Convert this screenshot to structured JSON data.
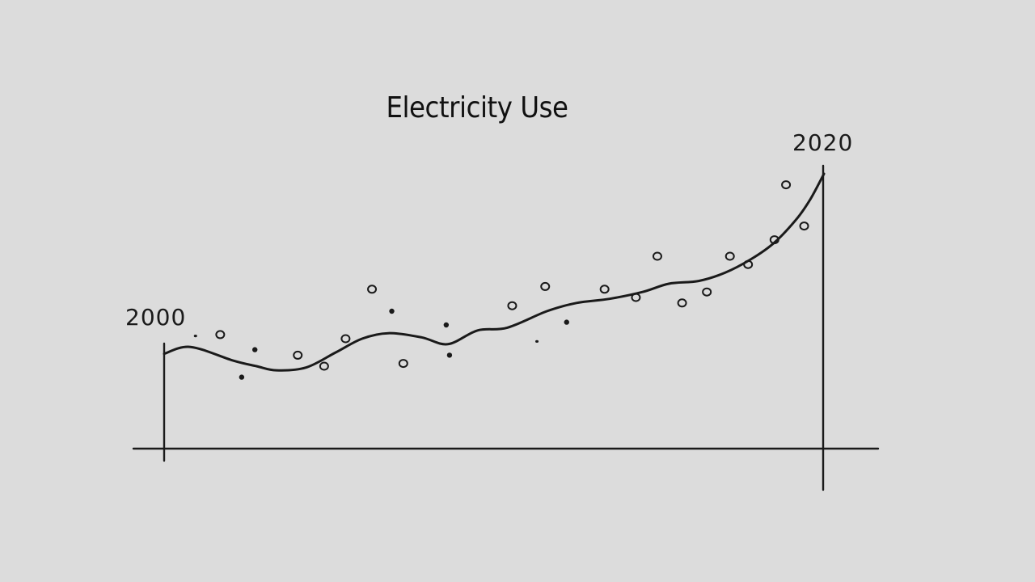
{
  "chart_data": {
    "type": "scatter",
    "title": "Electricity Use",
    "xlabel": "",
    "ylabel": "",
    "x_tick_labels": [
      "2000",
      "2020"
    ],
    "xlim": [
      2000,
      2020
    ],
    "ylim": [
      0,
      100
    ],
    "grid": false,
    "legend": "none",
    "series": [
      {
        "style": "points",
        "points": [
          {
            "x": 0.95,
            "y": 41,
            "mark": "tick"
          },
          {
            "x": 1.7,
            "y": 41.5,
            "mark": "open"
          },
          {
            "x": 2.35,
            "y": 26,
            "mark": "dot"
          },
          {
            "x": 2.75,
            "y": 36,
            "mark": "dot"
          },
          {
            "x": 4.05,
            "y": 34,
            "mark": "open"
          },
          {
            "x": 4.85,
            "y": 30,
            "mark": "open"
          },
          {
            "x": 5.5,
            "y": 40,
            "mark": "open"
          },
          {
            "x": 6.3,
            "y": 58,
            "mark": "open"
          },
          {
            "x": 6.9,
            "y": 50,
            "mark": "dot"
          },
          {
            "x": 7.25,
            "y": 31,
            "mark": "open"
          },
          {
            "x": 8.55,
            "y": 45,
            "mark": "dot"
          },
          {
            "x": 8.65,
            "y": 34,
            "mark": "dot"
          },
          {
            "x": 10.55,
            "y": 52,
            "mark": "open"
          },
          {
            "x": 11.3,
            "y": 39,
            "mark": "tick"
          },
          {
            "x": 11.55,
            "y": 59,
            "mark": "open"
          },
          {
            "x": 12.2,
            "y": 46,
            "mark": "dot"
          },
          {
            "x": 13.35,
            "y": 58,
            "mark": "open"
          },
          {
            "x": 14.3,
            "y": 55,
            "mark": "open"
          },
          {
            "x": 14.95,
            "y": 70,
            "mark": "open"
          },
          {
            "x": 15.7,
            "y": 53,
            "mark": "open"
          },
          {
            "x": 16.45,
            "y": 57,
            "mark": "open"
          },
          {
            "x": 17.15,
            "y": 70,
            "mark": "open"
          },
          {
            "x": 17.7,
            "y": 67,
            "mark": "open"
          },
          {
            "x": 18.5,
            "y": 76,
            "mark": "open"
          },
          {
            "x": 18.85,
            "y": 96,
            "mark": "open"
          },
          {
            "x": 19.4,
            "y": 81,
            "mark": "open"
          }
        ]
      },
      {
        "style": "trend-line",
        "points": [
          {
            "x": 0,
            "y": 34.5
          },
          {
            "x": 0.8,
            "y": 37
          },
          {
            "x": 2.1,
            "y": 32
          },
          {
            "x": 2.8,
            "y": 30
          },
          {
            "x": 3.4,
            "y": 28.5
          },
          {
            "x": 4.3,
            "y": 29.5
          },
          {
            "x": 5.2,
            "y": 35
          },
          {
            "x": 6.0,
            "y": 40
          },
          {
            "x": 6.8,
            "y": 42
          },
          {
            "x": 7.8,
            "y": 40.5
          },
          {
            "x": 8.6,
            "y": 38
          },
          {
            "x": 9.5,
            "y": 43
          },
          {
            "x": 10.4,
            "y": 44
          },
          {
            "x": 11.6,
            "y": 50
          },
          {
            "x": 12.5,
            "y": 53
          },
          {
            "x": 13.5,
            "y": 54.5
          },
          {
            "x": 14.5,
            "y": 57
          },
          {
            "x": 15.3,
            "y": 60
          },
          {
            "x": 16.2,
            "y": 61
          },
          {
            "x": 17.0,
            "y": 64
          },
          {
            "x": 17.8,
            "y": 69
          },
          {
            "x": 18.5,
            "y": 75
          },
          {
            "x": 19.2,
            "y": 84
          },
          {
            "x": 19.6,
            "y": 91
          },
          {
            "x": 20,
            "y": 100
          }
        ]
      }
    ]
  }
}
